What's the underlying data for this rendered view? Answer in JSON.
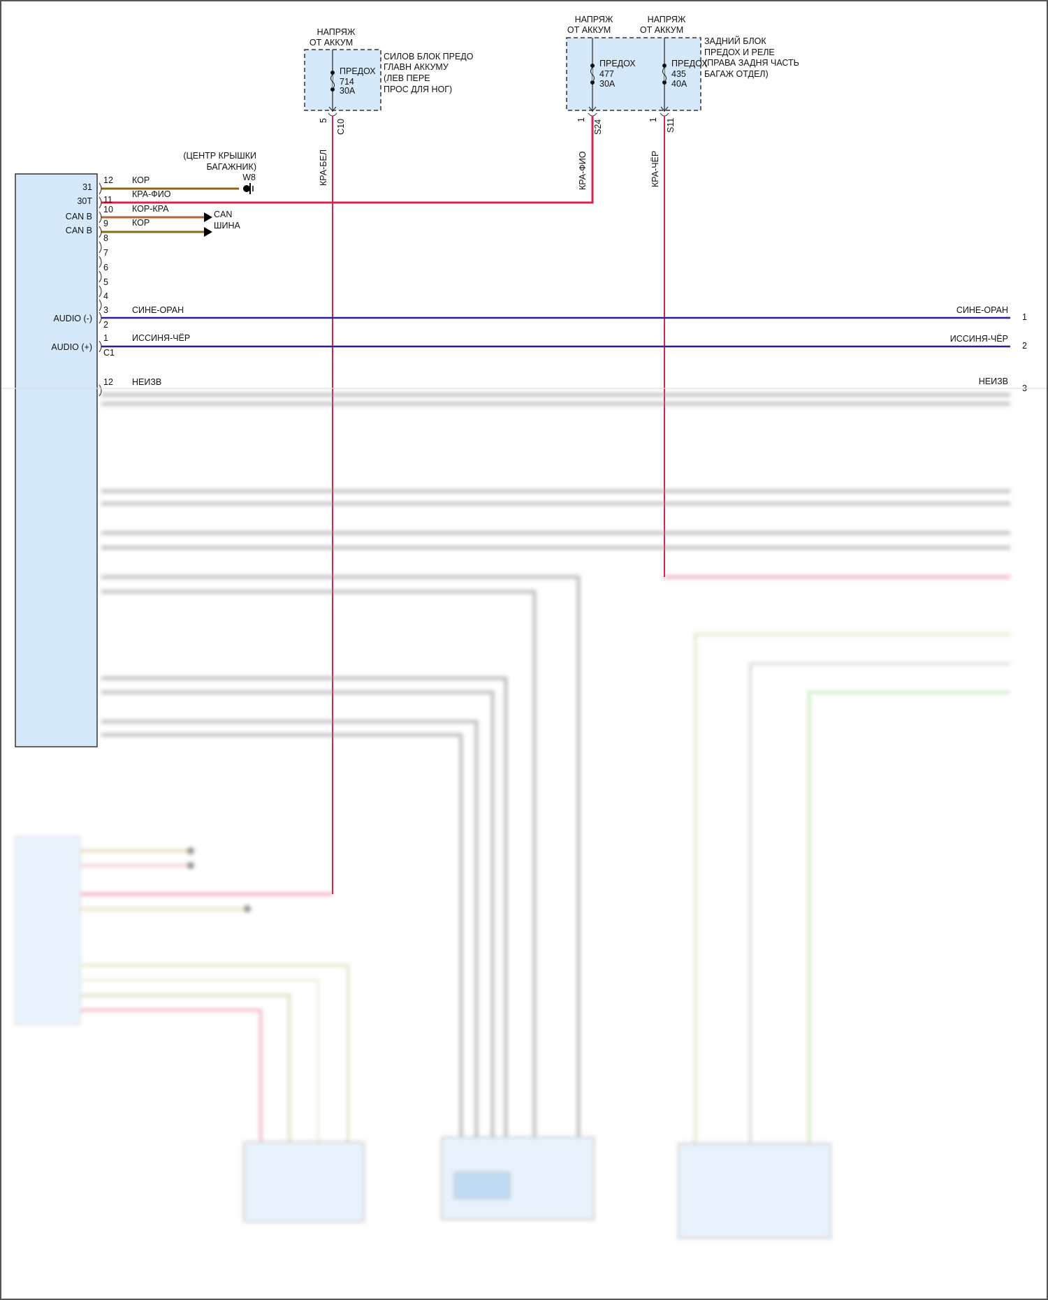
{
  "colors": {
    "module_fill": "#d6e9fb",
    "wire_brown": "#8a6a1a",
    "wire_red": "#d8234f",
    "wire_orange_brown": "#b0653a",
    "wire_blue": "#2b1d9a",
    "wire_gray": "#9a9a9a"
  },
  "fuse_box_front": {
    "supply": [
      "НАПРЯЖ",
      "ОТ АККУМ"
    ],
    "fuse": {
      "name": "ПРЕДОХ",
      "number": "714",
      "rating": "30A"
    },
    "description": [
      "СИЛОВ БЛОК ПРЕДО",
      "ГЛАВН АККУМУ",
      "(ЛЕВ ПЕРЕ",
      "ПРОС ДЛЯ НОГ)"
    ],
    "pin": "5",
    "connector": "C10",
    "wire_color": "КРА-БЕЛ"
  },
  "fuse_box_rear": {
    "supply_1": [
      "НАПРЯЖ",
      "ОТ АККУМ"
    ],
    "supply_2": [
      "НАПРЯЖ",
      "ОТ АККУМ"
    ],
    "fuse_1": {
      "name": "ПРЕДОХ",
      "number": "477",
      "rating": "30A",
      "pin": "1",
      "connector": "S24",
      "wire_color": "КРА-ФИО"
    },
    "fuse_2": {
      "name": "ПРЕДОХ",
      "number": "435",
      "rating": "40A",
      "pin": "1",
      "connector": "S11",
      "wire_color": "КРА-ЧЁР"
    },
    "description": [
      "ЗАДНИЙ БЛОК",
      "ПРЕДОХ И РЕЛЕ",
      "(ПРАВА ЗАДНЯ ЧАСТЬ",
      "БАГАЖ ОТДЕЛ)"
    ]
  },
  "ground": {
    "location": [
      "(ЦЕНТР КРЫШКИ",
      "БАГАЖНИК)"
    ],
    "id": "W8"
  },
  "can_bus": [
    "CAN",
    "ШИНА"
  ],
  "module": {
    "pins": [
      {
        "label": "31",
        "pin": "12",
        "wire": "КОР"
      },
      {
        "label": "30T",
        "pin": "11",
        "wire": "КРА-ФИО"
      },
      {
        "label": "CAN B",
        "pin": "10",
        "wire": "КОР-КРА"
      },
      {
        "label": "CAN B",
        "pin": "9",
        "wire": "КОР"
      },
      {
        "label": "",
        "pin": "8"
      },
      {
        "label": "",
        "pin": "7"
      },
      {
        "label": "",
        "pin": "6"
      },
      {
        "label": "",
        "pin": "5"
      },
      {
        "label": "",
        "pin": "4"
      },
      {
        "label": "",
        "pin": "3",
        "wire": "СИНЕ-ОРАН"
      },
      {
        "label": "AUDIO (-)",
        "pin": "2"
      },
      {
        "label": "",
        "pin": "1",
        "wire": "ИССИНЯ-ЧЁР"
      },
      {
        "label": "AUDIO (+)",
        "pin": "C1"
      },
      {
        "label": "",
        "pin": "12",
        "wire": "НЕИЗВ"
      }
    ]
  },
  "right_terminals": [
    {
      "wire": "СИНЕ-ОРАН",
      "num": "1"
    },
    {
      "wire": "ИССИНЯ-ЧЁР",
      "num": "2"
    },
    {
      "wire": "НЕИЗВ",
      "num": "3"
    }
  ]
}
